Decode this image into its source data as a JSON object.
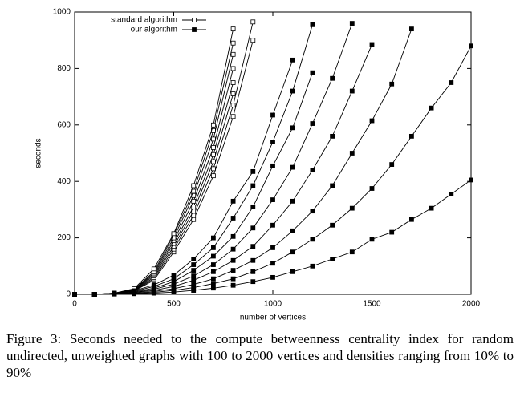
{
  "chart_data": {
    "type": "line",
    "xlabel": "number of vertices",
    "ylabel": "seconds",
    "caption": "Figure 3: Seconds needed to the compute betweenness centrality index for random undirected, unweighted graphs with 100 to 2000 vertices and densities ranging from 10% to 90%",
    "xlim": [
      0,
      2000
    ],
    "ylim": [
      0,
      1000
    ],
    "xticks": [
      0,
      500,
      1000,
      1500,
      2000
    ],
    "yticks": [
      0,
      200,
      400,
      600,
      800,
      1000
    ],
    "legend": "top-left",
    "x": [
      0,
      100,
      200,
      300,
      400,
      500,
      600,
      700,
      800,
      900,
      1000,
      1100,
      1200,
      1300,
      1400,
      1500,
      1600,
      1700,
      1800,
      1900,
      2000
    ],
    "series": [
      {
        "name": "standard algorithm",
        "marker": "open-square",
        "color": "#000000",
        "curves": [
          [
            0,
            0,
            2,
            12,
            50,
            150,
            265,
            420,
            630,
            900,
            null,
            null,
            null,
            null,
            null,
            null,
            null,
            null,
            null,
            null,
            null
          ],
          [
            0,
            0,
            2,
            13,
            55,
            160,
            280,
            445,
            670,
            965,
            null,
            null,
            null,
            null,
            null,
            null,
            null,
            null,
            null,
            null,
            null
          ],
          [
            0,
            0,
            3,
            14,
            60,
            170,
            295,
            470,
            710,
            null,
            null,
            null,
            null,
            null,
            null,
            null,
            null,
            null,
            null,
            null,
            null
          ],
          [
            0,
            0,
            3,
            15,
            65,
            180,
            310,
            495,
            750,
            null,
            null,
            null,
            null,
            null,
            null,
            null,
            null,
            null,
            null,
            null,
            null
          ],
          [
            0,
            0,
            3,
            16,
            70,
            190,
            330,
            520,
            800,
            null,
            null,
            null,
            null,
            null,
            null,
            null,
            null,
            null,
            null,
            null,
            null
          ],
          [
            0,
            0,
            4,
            17,
            75,
            200,
            350,
            550,
            850,
            null,
            null,
            null,
            null,
            null,
            null,
            null,
            null,
            null,
            null,
            null,
            null
          ],
          [
            0,
            0,
            4,
            18,
            80,
            210,
            365,
            580,
            890,
            null,
            null,
            null,
            null,
            null,
            null,
            null,
            null,
            null,
            null,
            null,
            null
          ],
          [
            0,
            0,
            4,
            20,
            90,
            215,
            385,
            600,
            940,
            null,
            null,
            null,
            null,
            null,
            null,
            null,
            null,
            null,
            null,
            null,
            null
          ]
        ]
      },
      {
        "name": "our algorithm",
        "marker": "filled-square",
        "color": "#000000",
        "curves": [
          [
            0,
            0,
            1,
            2,
            4,
            8,
            14,
            22,
            32,
            45,
            60,
            80,
            100,
            125,
            150,
            195,
            220,
            265,
            305,
            355,
            405
          ],
          [
            0,
            0,
            1,
            3,
            7,
            14,
            24,
            38,
            55,
            80,
            110,
            150,
            195,
            245,
            305,
            375,
            460,
            560,
            660,
            750,
            880
          ],
          [
            0,
            0,
            1,
            4,
            10,
            20,
            35,
            55,
            85,
            120,
            165,
            225,
            295,
            385,
            500,
            615,
            745,
            940,
            null,
            null,
            null
          ],
          [
            0,
            0,
            2,
            6,
            14,
            28,
            50,
            80,
            120,
            170,
            245,
            330,
            440,
            560,
            720,
            885,
            null,
            null,
            null,
            null,
            null
          ],
          [
            0,
            0,
            2,
            7,
            18,
            36,
            65,
            105,
            160,
            235,
            335,
            450,
            605,
            765,
            960,
            null,
            null,
            null,
            null,
            null,
            null
          ],
          [
            0,
            0,
            3,
            9,
            22,
            45,
            85,
            135,
            205,
            310,
            455,
            590,
            785,
            null,
            null,
            null,
            null,
            null,
            null,
            null,
            null
          ],
          [
            0,
            0,
            3,
            11,
            28,
            55,
            105,
            165,
            270,
            385,
            540,
            720,
            955,
            null,
            null,
            null,
            null,
            null,
            null,
            null,
            null
          ],
          [
            0,
            0,
            4,
            13,
            33,
            68,
            125,
            200,
            330,
            435,
            635,
            830,
            null,
            null,
            null,
            null,
            null,
            null,
            null,
            null,
            null
          ]
        ]
      }
    ]
  }
}
